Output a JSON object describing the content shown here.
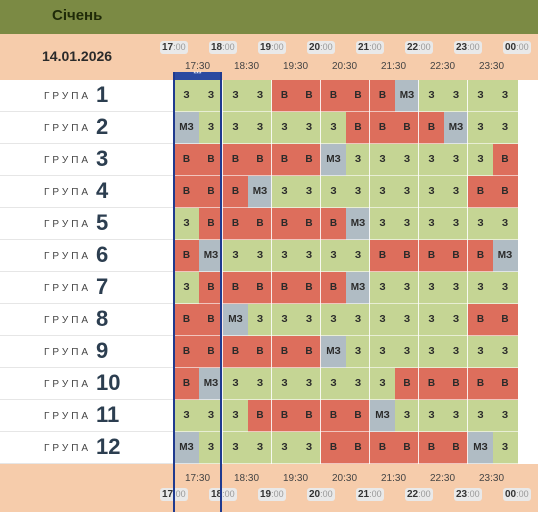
{
  "title": "Січень",
  "date": "14.01.2026",
  "hours": [
    {
      "h": "17",
      "m": ":00"
    },
    {
      "h": "18",
      "m": ":00"
    },
    {
      "h": "19",
      "m": ":00"
    },
    {
      "h": "20",
      "m": ":00"
    },
    {
      "h": "21",
      "m": ":00"
    },
    {
      "h": "22",
      "m": ":00"
    },
    {
      "h": "23",
      "m": ":00"
    },
    {
      "h": "00",
      "m": ":00"
    }
  ],
  "half_hours": [
    "17:30",
    "18:30",
    "19:30",
    "20:30",
    "21:30",
    "22:30",
    "23:30"
  ],
  "now_marker": "***",
  "group_word": "ГРУПА",
  "legend_codes": {
    "on": "З",
    "off": "В",
    "maybe": "МЗ"
  },
  "colors": {
    "on": "#c5d594",
    "off": "#dd6e5c",
    "maybe": "#b0bcc4",
    "header": "#7b8a44",
    "band": "#f6ccab"
  },
  "groups": [
    {
      "num": "1",
      "slots": [
        "З",
        "З",
        "З",
        "З",
        "В",
        "В",
        "В",
        "В",
        "В",
        "МЗ",
        "З",
        "З",
        "З",
        "З"
      ]
    },
    {
      "num": "2",
      "slots": [
        "МЗ",
        "З",
        "З",
        "З",
        "З",
        "З",
        "З",
        "В",
        "В",
        "В",
        "В",
        "МЗ",
        "З",
        "З"
      ]
    },
    {
      "num": "3",
      "slots": [
        "В",
        "В",
        "В",
        "В",
        "В",
        "В",
        "МЗ",
        "З",
        "З",
        "З",
        "З",
        "З",
        "З",
        "В"
      ]
    },
    {
      "num": "4",
      "slots": [
        "В",
        "В",
        "В",
        "МЗ",
        "З",
        "З",
        "З",
        "З",
        "З",
        "З",
        "З",
        "З",
        "В",
        "В"
      ]
    },
    {
      "num": "5",
      "slots": [
        "З",
        "В",
        "В",
        "В",
        "В",
        "В",
        "В",
        "МЗ",
        "З",
        "З",
        "З",
        "З",
        "З",
        "З"
      ]
    },
    {
      "num": "6",
      "slots": [
        "В",
        "МЗ",
        "З",
        "З",
        "З",
        "З",
        "З",
        "З",
        "В",
        "В",
        "В",
        "В",
        "В",
        "МЗ"
      ]
    },
    {
      "num": "7",
      "slots": [
        "З",
        "В",
        "В",
        "В",
        "В",
        "В",
        "В",
        "МЗ",
        "З",
        "З",
        "З",
        "З",
        "З",
        "З"
      ]
    },
    {
      "num": "8",
      "slots": [
        "В",
        "В",
        "МЗ",
        "З",
        "З",
        "З",
        "З",
        "З",
        "З",
        "З",
        "З",
        "З",
        "В",
        "В"
      ]
    },
    {
      "num": "9",
      "slots": [
        "В",
        "В",
        "В",
        "В",
        "В",
        "В",
        "МЗ",
        "З",
        "З",
        "З",
        "З",
        "З",
        "З",
        "З"
      ]
    },
    {
      "num": "10",
      "slots": [
        "В",
        "МЗ",
        "З",
        "З",
        "З",
        "З",
        "З",
        "З",
        "З",
        "В",
        "В",
        "В",
        "В",
        "В"
      ]
    },
    {
      "num": "11",
      "slots": [
        "З",
        "З",
        "З",
        "В",
        "В",
        "В",
        "В",
        "В",
        "МЗ",
        "З",
        "З",
        "З",
        "З",
        "З"
      ]
    },
    {
      "num": "12",
      "slots": [
        "МЗ",
        "З",
        "З",
        "З",
        "З",
        "З",
        "В",
        "В",
        "В",
        "В",
        "В",
        "В",
        "МЗ",
        "З"
      ]
    }
  ]
}
